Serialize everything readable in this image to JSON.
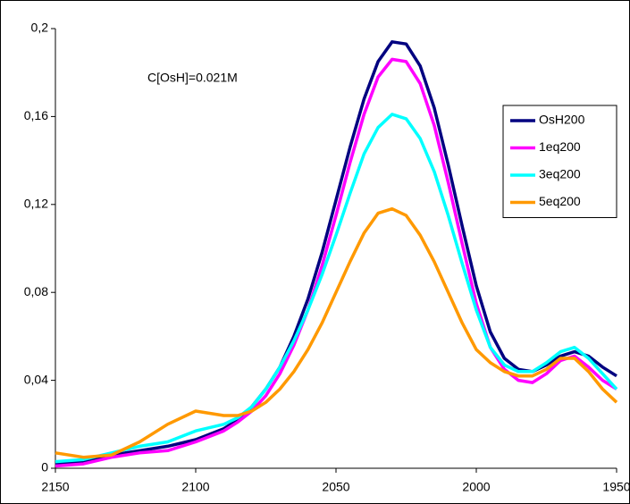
{
  "chart_data": {
    "type": "line",
    "annotation": "C[OsH]=0.021M",
    "x": [
      2150,
      2140,
      2130,
      2120,
      2110,
      2100,
      2090,
      2085,
      2080,
      2075,
      2070,
      2065,
      2060,
      2055,
      2050,
      2045,
      2040,
      2035,
      2030,
      2025,
      2020,
      2015,
      2010,
      2005,
      2000,
      1995,
      1990,
      1985,
      1980,
      1975,
      1970,
      1965,
      1960,
      1955,
      1950
    ],
    "series": [
      {
        "name": "OsH200",
        "color": "#000080",
        "values": [
          0.002,
          0.003,
          0.006,
          0.008,
          0.01,
          0.013,
          0.018,
          0.022,
          0.028,
          0.036,
          0.046,
          0.06,
          0.077,
          0.098,
          0.122,
          0.146,
          0.168,
          0.185,
          0.194,
          0.193,
          0.183,
          0.164,
          0.138,
          0.11,
          0.083,
          0.062,
          0.05,
          0.045,
          0.044,
          0.047,
          0.051,
          0.053,
          0.051,
          0.046,
          0.042
        ]
      },
      {
        "name": "1eq200",
        "color": "#ff00ff",
        "values": [
          0.001,
          0.002,
          0.005,
          0.007,
          0.008,
          0.012,
          0.017,
          0.021,
          0.026,
          0.033,
          0.043,
          0.056,
          0.072,
          0.092,
          0.115,
          0.139,
          0.161,
          0.178,
          0.186,
          0.185,
          0.175,
          0.156,
          0.13,
          0.102,
          0.075,
          0.055,
          0.045,
          0.04,
          0.039,
          0.043,
          0.049,
          0.051,
          0.046,
          0.04,
          0.036
        ]
      },
      {
        "name": "3eq200",
        "color": "#00ffff",
        "values": [
          0.003,
          0.004,
          0.007,
          0.01,
          0.012,
          0.017,
          0.02,
          0.023,
          0.028,
          0.036,
          0.046,
          0.058,
          0.072,
          0.088,
          0.106,
          0.125,
          0.143,
          0.155,
          0.161,
          0.159,
          0.15,
          0.135,
          0.115,
          0.093,
          0.072,
          0.055,
          0.047,
          0.044,
          0.044,
          0.048,
          0.053,
          0.055,
          0.05,
          0.043,
          0.036
        ]
      },
      {
        "name": "5eq200",
        "color": "#ff9900",
        "values": [
          0.007,
          0.005,
          0.006,
          0.012,
          0.02,
          0.026,
          0.024,
          0.024,
          0.026,
          0.03,
          0.036,
          0.044,
          0.054,
          0.066,
          0.08,
          0.094,
          0.107,
          0.116,
          0.118,
          0.115,
          0.106,
          0.094,
          0.08,
          0.066,
          0.054,
          0.048,
          0.044,
          0.042,
          0.042,
          0.045,
          0.05,
          0.05,
          0.044,
          0.036,
          0.03
        ]
      }
    ],
    "xlim": [
      2150,
      1950
    ],
    "xticks": [
      2150,
      2100,
      2050,
      2000,
      1950
    ],
    "ylim": [
      0,
      0.2
    ],
    "yticks": [
      0,
      {
        "value": 0.04,
        "label": "0,04"
      },
      {
        "value": 0.08,
        "label": "0,08"
      },
      {
        "value": 0.12,
        "label": "0,12"
      },
      {
        "value": 0.16,
        "label": "0,16"
      },
      {
        "value": 0.2,
        "label": "0,2"
      }
    ],
    "grid": false,
    "legend": "right"
  }
}
